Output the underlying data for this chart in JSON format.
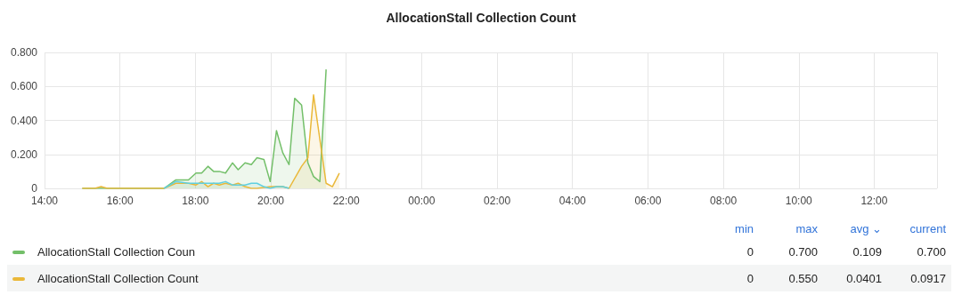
{
  "chart_data": {
    "type": "area",
    "title": "AllocationStall Collection Count",
    "xlim": [
      "--01-01T14:00",
      "--01-02T13:40"
    ],
    "xticks": [
      {
        "value": "--01-01T14:00",
        "label": "14:00"
      },
      {
        "value": "--01-01T16:00",
        "label": "16:00"
      },
      {
        "value": "--01-01T18:00",
        "label": "18:00"
      },
      {
        "value": "--01-01T20:00",
        "label": "20:00"
      },
      {
        "value": "--01-01T22:00",
        "label": "22:00"
      },
      {
        "value": "--01-02T00:00",
        "label": "00:00"
      },
      {
        "value": "--01-02T02:00",
        "label": "02:00"
      },
      {
        "value": "--01-02T04:00",
        "label": "04:00"
      },
      {
        "value": "--01-02T06:00",
        "label": "06:00"
      },
      {
        "value": "--01-02T08:00",
        "label": "08:00"
      },
      {
        "value": "--01-02T10:00",
        "label": "10:00"
      },
      {
        "value": "--01-02T12:00",
        "label": "12:00"
      }
    ],
    "ylim": [
      0,
      0.8
    ],
    "yticks": [
      0,
      {
        "value": 0.2,
        "label": "0.200"
      },
      {
        "value": 0.4,
        "label": "0.400"
      },
      {
        "value": 0.6,
        "label": "0.600"
      },
      {
        "value": 0.8,
        "label": "0.800"
      }
    ],
    "grid": true,
    "legend": "bottom",
    "marker": "none",
    "line_style": "solid",
    "series": [
      {
        "name": "AllocationStall Collection Coun",
        "color": "#73bf69",
        "x": [
          "--01-01T15:00",
          "--01-01T15:30",
          "--01-01T16:00",
          "--01-01T16:30",
          "--01-01T17:00",
          "--01-01T17:10",
          "--01-01T17:29",
          "--01-01T17:39",
          "--01-01T17:49",
          "--01-01T18:01",
          "--01-01T18:10",
          "--01-01T18:20",
          "--01-01T18:29",
          "--01-01T18:38",
          "--01-01T18:48",
          "--01-01T18:59",
          "--01-01T19:08",
          "--01-01T19:19",
          "--01-01T19:29",
          "--01-01T19:38",
          "--01-01T19:49",
          "--01-01T19:59",
          "--01-01T20:09",
          "--01-01T20:19",
          "--01-01T20:29",
          "--01-01T20:38",
          "--01-01T20:49",
          "--01-01T20:59",
          "--01-01T21:08",
          "--01-01T21:18",
          "--01-01T21:28"
        ],
        "values": [
          0,
          0,
          0,
          0,
          0,
          0,
          0.05,
          0.05,
          0.05,
          0.09,
          0.09,
          0.13,
          0.1,
          0.1,
          0.09,
          0.15,
          0.11,
          0.15,
          0.14,
          0.18,
          0.17,
          0.04,
          0.34,
          0.21,
          0.14,
          0.53,
          0.49,
          0.15,
          0.07,
          0.04,
          0.7
        ]
      },
      {
        "name": "AllocationStall Collection Count",
        "color": "#eab839",
        "x": [
          "--01-01T15:00",
          "--01-01T15:20",
          "--01-01T15:30",
          "--01-01T15:40",
          "--01-01T16:00",
          "--01-01T17:00",
          "--01-01T17:10",
          "--01-01T17:29",
          "--01-01T17:49",
          "--01-01T18:01",
          "--01-01T18:10",
          "--01-01T18:20",
          "--01-01T18:29",
          "--01-01T18:38",
          "--01-01T18:48",
          "--01-01T18:59",
          "--01-01T19:08",
          "--01-01T19:19",
          "--01-01T19:29",
          "--01-01T19:38",
          "--01-01T19:59",
          "--01-01T20:09",
          "--01-01T20:19",
          "--01-01T20:29",
          "--01-01T20:49",
          "--01-01T20:59",
          "--01-01T21:08",
          "--01-01T21:28",
          "--01-01T21:38",
          "--01-01T21:49"
        ],
        "values": [
          0,
          0,
          0.01,
          0,
          0,
          0,
          0,
          0.03,
          0.03,
          0.02,
          0.04,
          0.01,
          0.03,
          0.02,
          0.03,
          0.02,
          0.03,
          0.01,
          0,
          0,
          0.01,
          0.01,
          0.01,
          0,
          0.13,
          0.18,
          0.55,
          0.03,
          0.01,
          0.09
        ]
      },
      {
        "color": "#5fcfe0",
        "x": [
          "--01-01T17:10",
          "--01-01T17:29",
          "--01-01T17:49",
          "--01-01T18:01",
          "--01-01T18:20",
          "--01-01T18:38",
          "--01-01T18:48",
          "--01-01T18:59",
          "--01-01T19:19",
          "--01-01T19:29",
          "--01-01T19:38",
          "--01-01T19:49",
          "--01-01T19:59",
          "--01-01T20:09",
          "--01-01T20:19",
          "--01-01T20:29"
        ],
        "values": [
          0,
          0.04,
          0.03,
          0.03,
          0.03,
          0.03,
          0.04,
          0.02,
          0.02,
          0.03,
          0.03,
          0.01,
          0,
          0.01,
          0.01,
          0
        ]
      }
    ],
    "annotations": [
      "min",
      "max",
      "avg ⌄",
      "current",
      "0",
      "0.700",
      "0.109",
      "0.700",
      "0",
      "0.550",
      "0.0401",
      "0.0917"
    ]
  }
}
